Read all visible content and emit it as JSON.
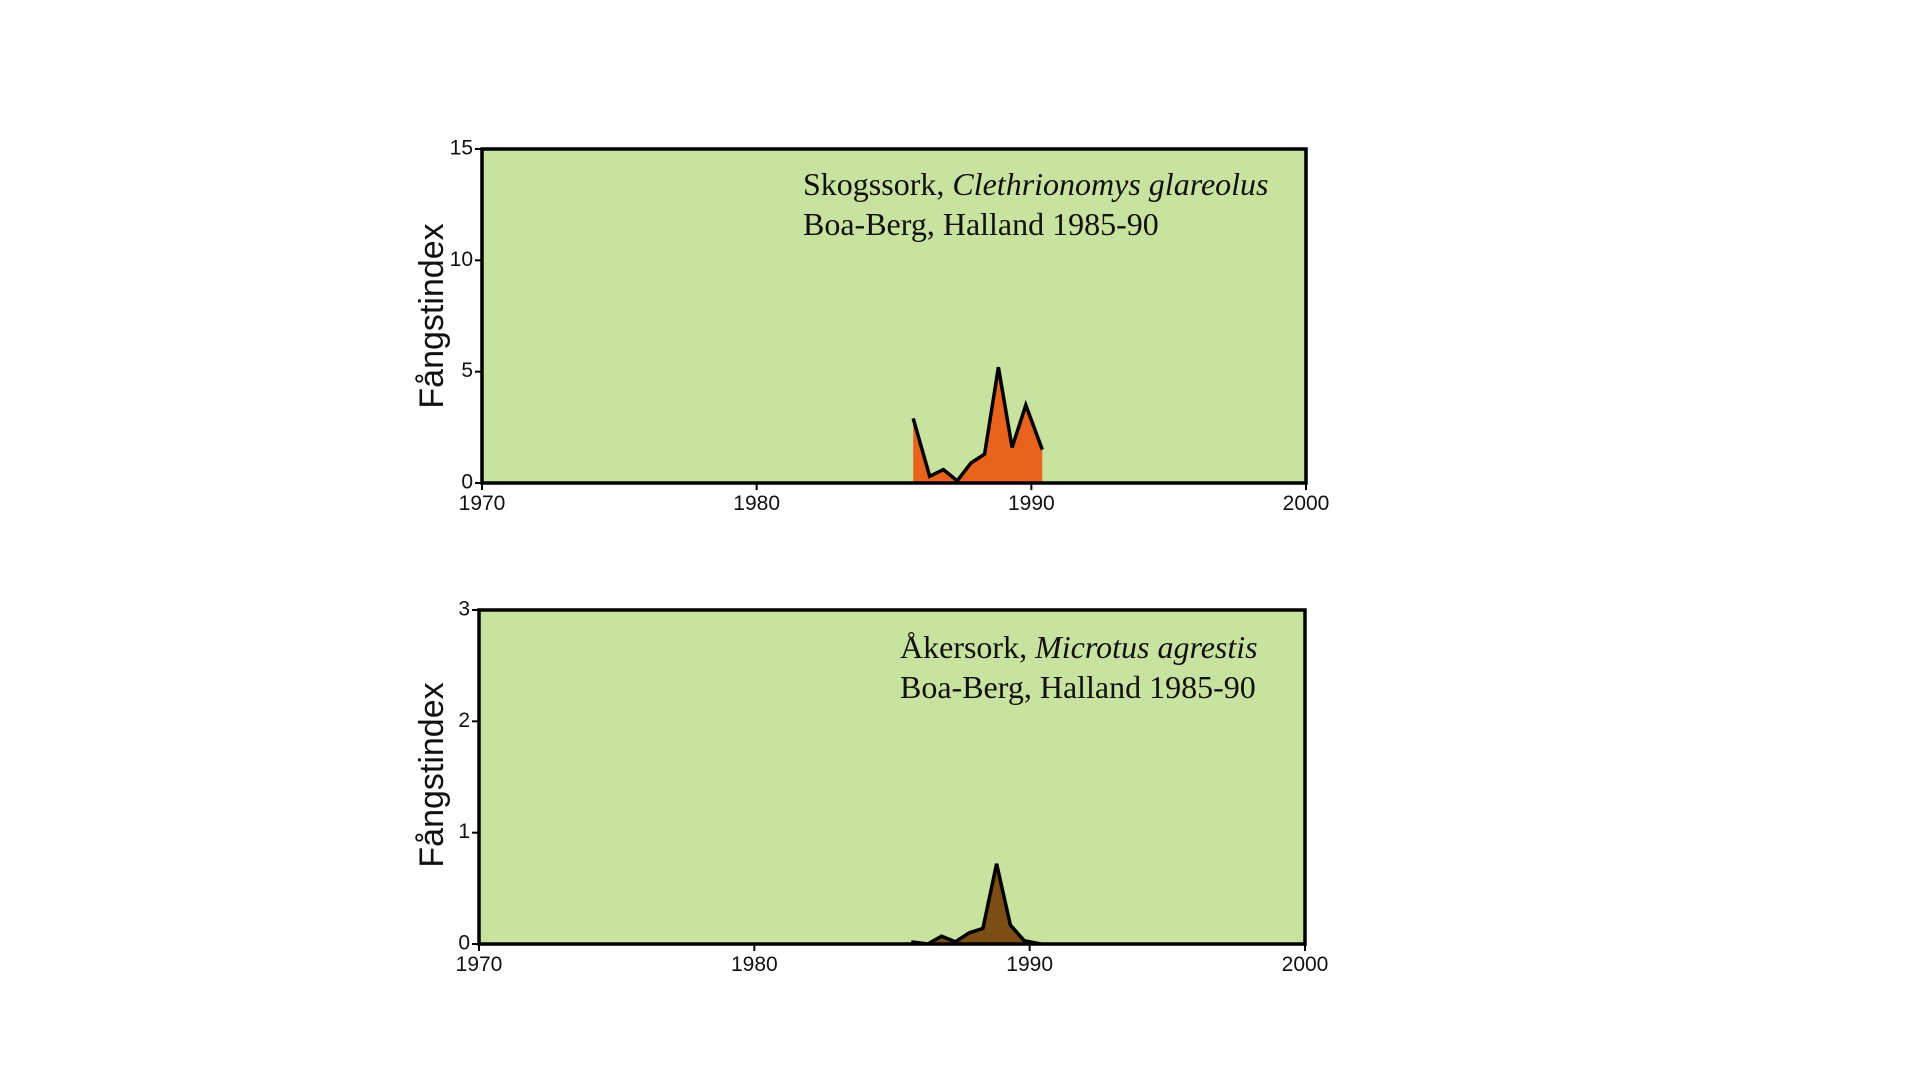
{
  "colors": {
    "plot_background": "#c8e2a0",
    "frame": "#000000",
    "series_top_fill": "#e8631c",
    "series_bottom_fill": "#7a4e15",
    "line": "#000000"
  },
  "chart_data": [
    {
      "type": "area",
      "ylabel": "Fångstindex",
      "xlabel": "",
      "xlim": [
        1970,
        2000
      ],
      "ylim": [
        0,
        15
      ],
      "x_ticks": [
        "1970",
        "1980",
        "1990",
        "2000"
      ],
      "y_ticks": [
        "0",
        "5",
        "10",
        "15"
      ],
      "annotation": {
        "line1_prefix": "Skogssork, ",
        "line1_species": "Clethrionomys glareolus",
        "line2": "Boa-Berg, Halland 1985-90"
      },
      "grid": false,
      "series": [
        {
          "x": [
            1985.7,
            1986.3,
            1986.8,
            1987.3,
            1987.8,
            1988.3,
            1988.8,
            1989.3,
            1989.8,
            1990.4
          ],
          "values": [
            2.9,
            0.3,
            0.6,
            0.1,
            0.9,
            1.3,
            5.2,
            1.6,
            3.5,
            1.5
          ]
        }
      ]
    },
    {
      "type": "area",
      "ylabel": "Fångstindex",
      "xlabel": "",
      "xlim": [
        1970,
        2000
      ],
      "ylim": [
        0,
        3
      ],
      "x_ticks": [
        "1970",
        "1980",
        "1990",
        "2000"
      ],
      "y_ticks": [
        "0",
        "1",
        "2",
        "3"
      ],
      "annotation": {
        "line1_prefix": "Åkersork, ",
        "line1_species": "Microtus agrestis",
        "line2": "Boa-Berg, Halland 1985-90"
      },
      "grid": false,
      "series": [
        {
          "x": [
            1985.7,
            1986.3,
            1986.8,
            1987.3,
            1987.8,
            1988.3,
            1988.8,
            1989.3,
            1989.8,
            1990.4
          ],
          "values": [
            0.02,
            0.0,
            0.07,
            0.02,
            0.1,
            0.14,
            0.72,
            0.17,
            0.03,
            0.0
          ]
        }
      ]
    }
  ]
}
